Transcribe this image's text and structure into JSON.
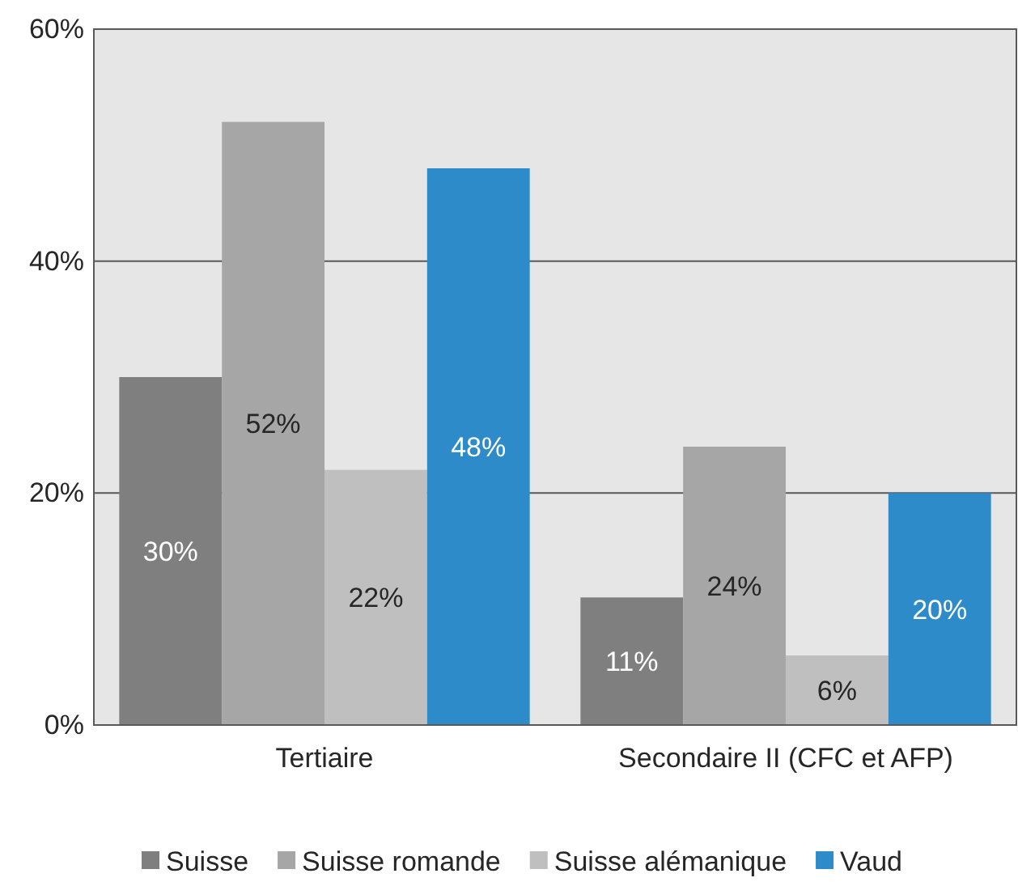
{
  "chart_data": {
    "type": "bar",
    "categories": [
      "Tertiaire",
      "Secondaire II (CFC et AFP)"
    ],
    "series": [
      {
        "name": "Suisse",
        "color": "#7f7f7f",
        "values": [
          30,
          11
        ],
        "value_labels": [
          "30%",
          "11%"
        ]
      },
      {
        "name": "Suisse romande",
        "color": "#a6a6a6",
        "values": [
          52,
          24
        ],
        "value_labels": [
          "52%",
          "24%"
        ]
      },
      {
        "name": "Suisse alémanique",
        "color": "#bfbfbf",
        "values": [
          22,
          6
        ],
        "value_labels": [
          "22%",
          "6%"
        ]
      },
      {
        "name": "Vaud",
        "color": "#2e8bc9",
        "values": [
          48,
          20
        ],
        "value_labels": [
          "48%",
          "20%"
        ]
      }
    ],
    "ylim": [
      0,
      60
    ],
    "yticks": [
      {
        "value": 0,
        "label": "0%"
      },
      {
        "value": 20,
        "label": "20%"
      },
      {
        "value": 40,
        "label": "40%"
      },
      {
        "value": 60,
        "label": "60%"
      }
    ],
    "grid": "y",
    "legend": "bottom"
  }
}
